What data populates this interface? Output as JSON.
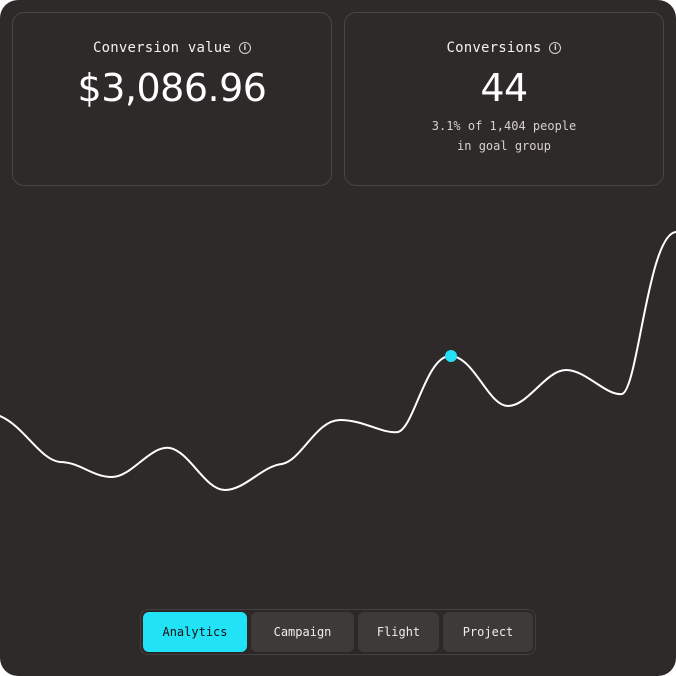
{
  "cards": {
    "conversion_value": {
      "title": "Conversion value",
      "value": "$3,086.96",
      "icon": "info-icon"
    },
    "conversions": {
      "title": "Conversions",
      "value": "44",
      "note_line1": "3.1% of 1,404 people",
      "note_line2": "in goal group",
      "icon": "info-icon"
    }
  },
  "chart": {
    "line_color": "#ffffff",
    "highlight_color": "#22e2f5"
  },
  "tabs": [
    {
      "label": "Analytics",
      "active": true
    },
    {
      "label": "Campaign",
      "active": false
    },
    {
      "label": "Flight",
      "active": false
    },
    {
      "label": "Project",
      "active": false
    }
  ],
  "colors": {
    "background": "#2e2a29",
    "accent": "#22e2f5"
  }
}
